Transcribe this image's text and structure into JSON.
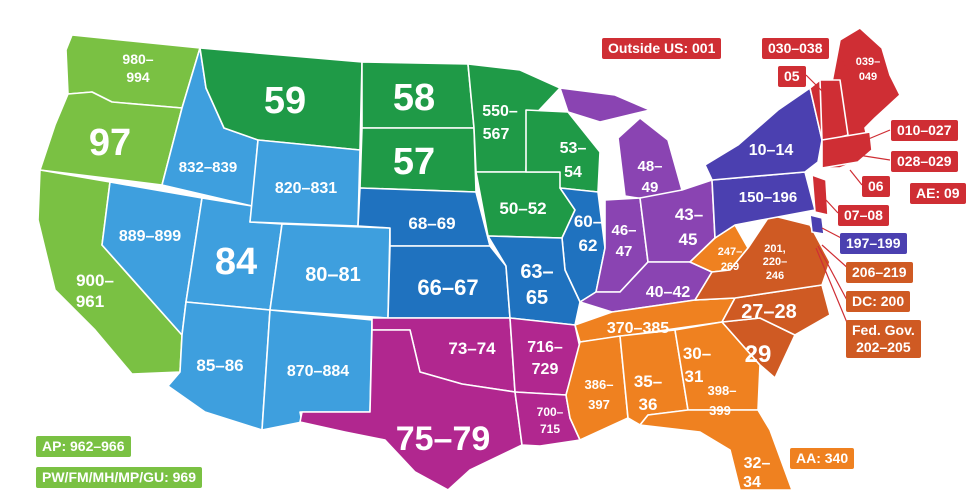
{
  "colors": {
    "green_light": "#7ac143",
    "green_dark": "#1f9a47",
    "blue_light": "#3e9fde",
    "blue_dark": "#1f72bf",
    "magenta": "#b1278f",
    "purple": "#8a44b2",
    "indigo": "#4b40b0",
    "red": "#cf2e34",
    "orange": "#ef8120",
    "rust": "#cf5a23"
  },
  "callouts": {
    "outside_us": "Outside US: 001",
    "ne_030_038": "030–038",
    "ne_05": "05",
    "ne_010_027": "010–027",
    "ne_028_029": "028–029",
    "ne_06": "06",
    "ae": "AE: 09",
    "nj_07_08": "07–08",
    "de_197_199": "197–199",
    "va_206_219": "206–219",
    "dc": "DC: 200",
    "fed_gov_line1": "Fed. Gov.",
    "fed_gov_line2": "202–205",
    "aa": "AA: 340",
    "ap": "AP: 962–966",
    "pacific": "PW/FM/MH/MP/GU: 969"
  },
  "regions": {
    "wa": [
      "980–",
      "994"
    ],
    "or": "97",
    "ca": [
      "900–",
      "961"
    ],
    "nv": "889–899",
    "id": "832–839",
    "ut": "84",
    "az": "85–86",
    "mt": "59",
    "wy": "820–831",
    "co": "80–81",
    "nm": "870–884",
    "nd": "58",
    "sd": "57",
    "mn": [
      "550–",
      "567"
    ],
    "ne": "68–69",
    "ks": "66–67",
    "ia": "50–52",
    "wi": [
      "53–",
      "54"
    ],
    "il": [
      "60–",
      "62"
    ],
    "mo": [
      "63–",
      "65"
    ],
    "ok": "73–74",
    "tx": "75–79",
    "ar": [
      "716–",
      "729"
    ],
    "la": [
      "700–",
      "715"
    ],
    "mi": [
      "48–",
      "49"
    ],
    "in": [
      "46–",
      "47"
    ],
    "oh": [
      "43–",
      "45"
    ],
    "ky": "40–42",
    "tn": "370–385",
    "ms": [
      "386–",
      "397"
    ],
    "al": [
      "35–",
      "36"
    ],
    "ga": [
      "30–",
      "31"
    ],
    "fl_north": [
      "398–",
      "399"
    ],
    "fl": [
      "32–",
      "34"
    ],
    "sc": "29",
    "nc": "27–28",
    "wv": [
      "247–",
      "269"
    ],
    "va": [
      "201,",
      "220–",
      "246"
    ],
    "pa": "150–196",
    "ny": "10–14",
    "me": [
      "039–",
      "049"
    ]
  }
}
